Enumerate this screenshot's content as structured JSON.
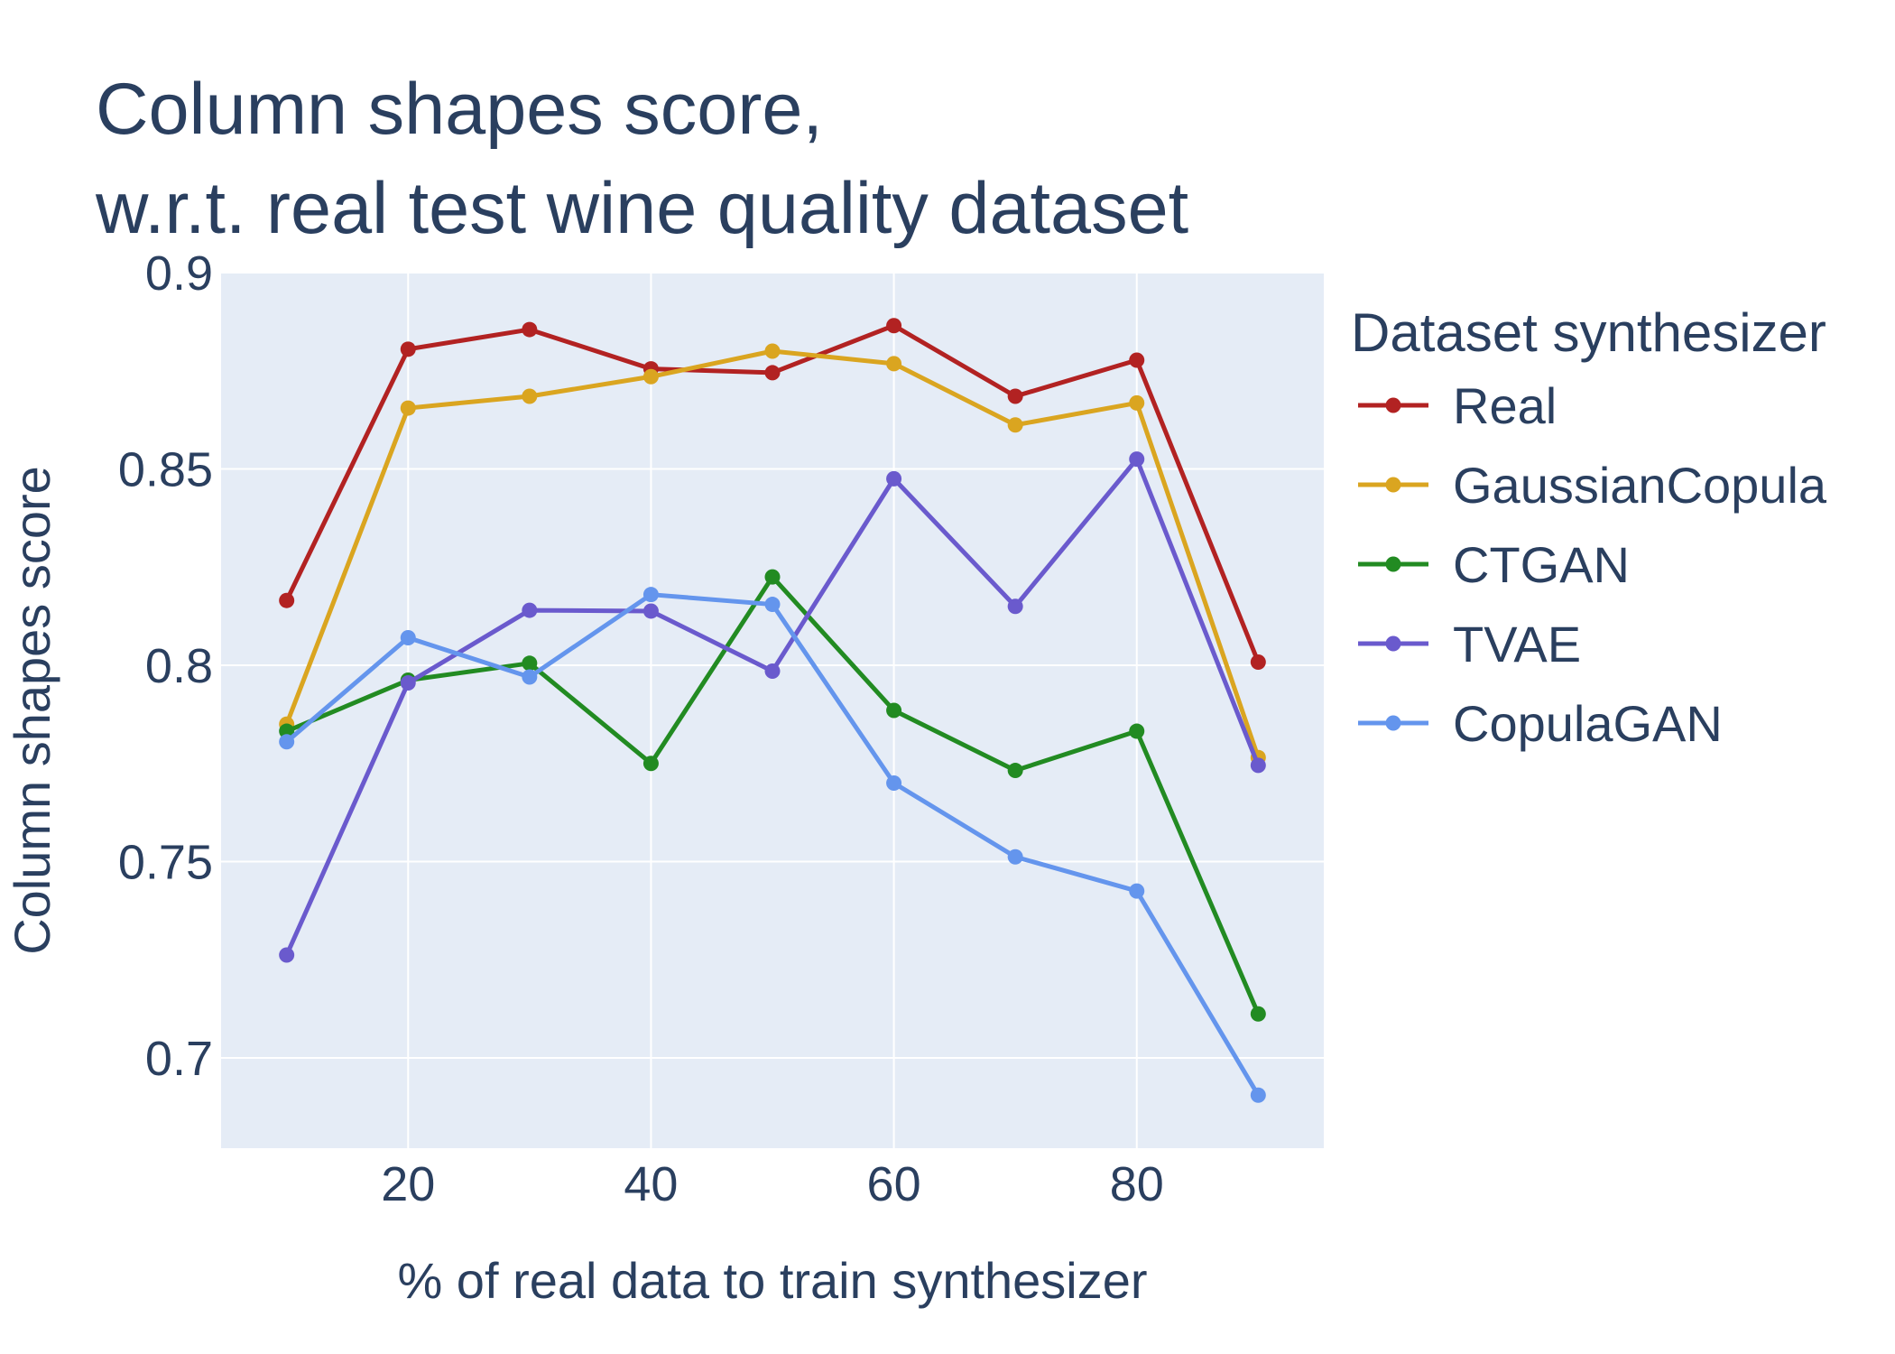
{
  "chart_data": {
    "type": "line",
    "title_lines": [
      "Column shapes score,",
      "w.r.t. real test wine quality dataset"
    ],
    "xlabel": "% of real data to train synthesizer",
    "ylabel": "Column shapes score",
    "x": [
      10,
      20,
      30,
      40,
      50,
      60,
      70,
      80,
      90
    ],
    "xlim": [
      4.6,
      95.4
    ],
    "ylim": [
      0.677,
      0.9
    ],
    "xticks": [
      20,
      40,
      60,
      80
    ],
    "xtick_labels": [
      "20",
      "40",
      "60",
      "80"
    ],
    "yticks": [
      0.7,
      0.75,
      0.8,
      0.85,
      0.9
    ],
    "ytick_labels": [
      "0.7",
      "0.75",
      "0.8",
      "0.85",
      "0.9"
    ],
    "grid": true,
    "legend_title": "Dataset synthesizer",
    "legend_position": "right",
    "series": [
      {
        "name": "Real",
        "color": "#b22222",
        "values": [
          0.8165,
          0.8805,
          0.8855,
          0.8755,
          0.8745,
          0.8865,
          0.8685,
          0.8777,
          0.8008
        ]
      },
      {
        "name": "GaussianCopula",
        "color": "#daa520",
        "values": [
          0.785,
          0.8655,
          0.8685,
          0.8735,
          0.88,
          0.8768,
          0.8612,
          0.8668,
          0.7765
        ]
      },
      {
        "name": "CTGAN",
        "color": "#228b22",
        "values": [
          0.7832,
          0.7962,
          0.8005,
          0.775,
          0.8225,
          0.7885,
          0.7732,
          0.7832,
          0.7112
        ]
      },
      {
        "name": "TVAE",
        "color": "#6a5acd",
        "values": [
          0.7262,
          0.7955,
          0.814,
          0.8138,
          0.7985,
          0.8475,
          0.815,
          0.8525,
          0.7745
        ]
      },
      {
        "name": "CopulaGAN",
        "color": "#6495ed",
        "values": [
          0.7805,
          0.807,
          0.797,
          0.818,
          0.8155,
          0.77,
          0.7512,
          0.7425,
          0.6905
        ]
      }
    ]
  }
}
